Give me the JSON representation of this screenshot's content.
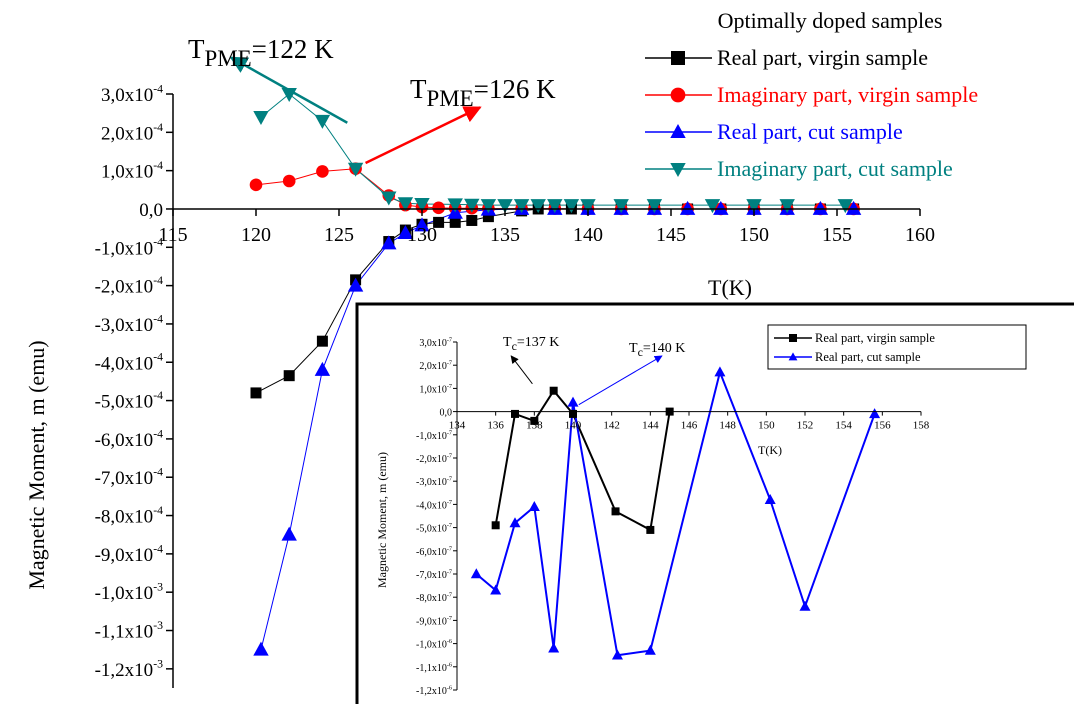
{
  "chart_data": [
    {
      "id": "main",
      "type": "line",
      "xlabel": "T(K)",
      "ylabel": "Magnetic Moment, m (emu)",
      "xlim": [
        115,
        160
      ],
      "ylim": [
        -0.00125,
        0.0003
      ],
      "x_ticks": [
        115,
        120,
        125,
        130,
        135,
        140,
        145,
        150,
        155,
        160
      ],
      "x_tick_labels": [
        "115",
        "120",
        "125",
        "130",
        "135",
        "140",
        "145",
        "150",
        "155",
        "160"
      ],
      "y_ticks": [
        0.0003,
        0.0002,
        0.0001,
        0,
        -0.0001,
        -0.0002,
        -0.0003,
        -0.0004,
        -0.0005,
        -0.0006,
        -0.0007,
        -0.0008,
        -0.0009,
        -0.001,
        -0.0011,
        -0.0012
      ],
      "y_tick_labels": [
        {
          "m": "3,0x10",
          "e": "-4"
        },
        {
          "m": "2,0x10",
          "e": "-4"
        },
        {
          "m": "1,0x10",
          "e": "-4"
        },
        {
          "m": "0,0",
          "e": ""
        },
        {
          "m": "-1,0x10",
          "e": "-4"
        },
        {
          "m": "-2,0x10",
          "e": "-4"
        },
        {
          "m": "-3,0x10",
          "e": "-4"
        },
        {
          "m": "-4,0x10",
          "e": "-4"
        },
        {
          "m": "-5,0x10",
          "e": "-4"
        },
        {
          "m": "-6,0x10",
          "e": "-4"
        },
        {
          "m": "-7,0x10",
          "e": "-4"
        },
        {
          "m": "-8,0x10",
          "e": "-4"
        },
        {
          "m": "-9,0x10",
          "e": "-4"
        },
        {
          "m": "-1,0x10",
          "e": "-3"
        },
        {
          "m": "-1,1x10",
          "e": "-3"
        },
        {
          "m": "-1,2x10",
          "e": "-3"
        }
      ],
      "legend_title": "Optimally doped samples",
      "legend_position": "top-right",
      "series": [
        {
          "name": "Real part, virgin sample",
          "color": "#000000",
          "marker": "square",
          "x": [
            120,
            122,
            124,
            126,
            128,
            129,
            130,
            131,
            132,
            133,
            134,
            136,
            137,
            138,
            139,
            140,
            142,
            144,
            146,
            148,
            150,
            152,
            154,
            156
          ],
          "y": [
            -0.00048,
            -0.000435,
            -0.000345,
            -0.000185,
            -8.5e-05,
            -5.5e-05,
            -4e-05,
            -3.5e-05,
            -3.5e-05,
            -3e-05,
            -2e-05,
            -5e-06,
            0,
            0,
            0,
            0,
            0,
            0,
            0,
            0,
            0,
            0,
            0,
            0
          ]
        },
        {
          "name": "Imaginary part, virgin sample",
          "color": "#ff0000",
          "marker": "circle",
          "x": [
            120,
            122,
            124,
            126,
            128,
            129,
            130,
            131,
            132,
            133,
            134,
            136,
            138,
            140,
            142,
            144,
            146,
            148,
            150,
            152,
            154,
            156
          ],
          "y": [
            6.3e-05,
            7.3e-05,
            9.8e-05,
            0.000105,
            3.5e-05,
            1e-05,
            5e-06,
            3e-06,
            2e-06,
            2e-06,
            1e-06,
            1e-06,
            1e-06,
            0,
            0,
            0,
            0,
            0,
            0,
            0,
            0,
            0
          ]
        },
        {
          "name": "Real part, cut sample",
          "color": "#0000ff",
          "marker": "triangle-up",
          "x": [
            120.3,
            122,
            124,
            126,
            128,
            129,
            130,
            132,
            134,
            136,
            138,
            140,
            142,
            144,
            146,
            148,
            150,
            152,
            154,
            156
          ],
          "y": [
            -0.00115,
            -0.00085,
            -0.00042,
            -0.0002,
            -9e-05,
            -6.3e-05,
            -4.3e-05,
            -1e-05,
            -2e-06,
            0,
            0,
            0,
            0,
            0,
            0,
            0,
            0,
            0,
            0,
            0
          ]
        },
        {
          "name": "Imaginary part, cut sample",
          "color": "#008080",
          "marker": "triangle-down",
          "x": [
            120.3,
            122,
            124,
            126,
            128,
            129,
            130,
            132,
            133,
            134,
            135,
            136,
            137,
            138,
            139,
            140,
            142,
            144,
            147.5,
            150,
            152,
            155.5
          ],
          "y": [
            0.00024,
            0.0003,
            0.00023,
            0.000105,
            3e-05,
            1.5e-05,
            1.3e-05,
            1.2e-05,
            1.1e-05,
            1e-05,
            1e-05,
            1e-05,
            1e-05,
            1e-05,
            1e-05,
            1e-05,
            1e-05,
            1e-05,
            1e-05,
            1e-05,
            1e-05,
            1e-05
          ]
        }
      ],
      "annotations": [
        {
          "text_main": "T",
          "text_sub": "PME",
          "text_rest": "=122 K",
          "arrow_from": [
            125.5,
            0.000225
          ],
          "arrow_to": [
            118.5,
            0.000395
          ],
          "color": "#008080"
        },
        {
          "text_main": "T",
          "text_sub": "PME",
          "text_rest": "=126 K",
          "arrow_from": [
            126.6,
            0.00012
          ],
          "arrow_to": [
            133.5,
            0.000265
          ],
          "color": "#ff0000"
        }
      ]
    },
    {
      "id": "inset",
      "type": "line",
      "xlabel": "T(K)",
      "ylabel": "Magnetic Moment, m (emu)",
      "xlim": [
        134,
        158
      ],
      "ylim": [
        -1.2e-06,
        3e-07
      ],
      "x_ticks": [
        134,
        136,
        138,
        140,
        142,
        144,
        146,
        148,
        150,
        152,
        154,
        156,
        158
      ],
      "x_tick_labels": [
        "134",
        "136",
        "138",
        "140",
        "142",
        "144",
        "146",
        "148",
        "150",
        "152",
        "154",
        "156",
        "158"
      ],
      "y_ticks": [
        3e-07,
        2e-07,
        1e-07,
        0,
        -1e-07,
        -2e-07,
        -3e-07,
        -4e-07,
        -5e-07,
        -6e-07,
        -7e-07,
        -8e-07,
        -9e-07,
        -1e-06,
        -1.1e-06,
        -1.2e-06
      ],
      "y_tick_labels": [
        {
          "m": "3,0x10",
          "e": "-7"
        },
        {
          "m": "2,0x10",
          "e": "-7"
        },
        {
          "m": "1,0x10",
          "e": "-7"
        },
        {
          "m": "0,0",
          "e": ""
        },
        {
          "m": "-1,0x10",
          "e": "-7"
        },
        {
          "m": "-2,0x10",
          "e": "-7"
        },
        {
          "m": "-3,0x10",
          "e": "-7"
        },
        {
          "m": "-4,0x10",
          "e": "-7"
        },
        {
          "m": "-5,0x10",
          "e": "-7"
        },
        {
          "m": "-6,0x10",
          "e": "-7"
        },
        {
          "m": "-7,0x10",
          "e": "-7"
        },
        {
          "m": "-8,0x10",
          "e": "-7"
        },
        {
          "m": "-9,0x10",
          "e": "-7"
        },
        {
          "m": "-1,0x10",
          "e": "-6"
        },
        {
          "m": "-1,1x10",
          "e": "-6"
        },
        {
          "m": "-1,2x10",
          "e": "-6"
        }
      ],
      "legend_position": "top-right",
      "series": [
        {
          "name": "Real part, virgin sample",
          "color": "#000000",
          "marker": "square",
          "x": [
            136,
            137,
            138,
            139,
            140,
            142.2,
            144,
            145
          ],
          "y": [
            -4.9e-07,
            -1e-08,
            -4e-08,
            9e-08,
            -1e-08,
            -4.3e-07,
            -5.1e-07,
            0
          ]
        },
        {
          "name": "Real part, cut sample",
          "color": "#0000ff",
          "marker": "triangle-up",
          "x": [
            135,
            136,
            137,
            138,
            139,
            140,
            142.3,
            144,
            147.6,
            150.2,
            152,
            155.6
          ],
          "y": [
            -7e-07,
            -7.7e-07,
            -4.8e-07,
            -4.1e-07,
            -1.02e-06,
            4e-08,
            -1.05e-06,
            -1.03e-06,
            1.7e-07,
            -3.8e-07,
            -8.4e-07,
            -1e-08
          ]
        }
      ],
      "annotations": [
        {
          "text_main": "T",
          "text_sub": "c",
          "text_rest": "=137 K",
          "arrow_from": [
            137.9,
            1.2e-07
          ],
          "arrow_to": [
            136.8,
            2.4e-07
          ],
          "color": "#000000"
        },
        {
          "text_main": "T",
          "text_sub": "c",
          "text_rest": "=140 K",
          "arrow_from": [
            140.3,
            3e-08
          ],
          "arrow_to": [
            144.6,
            2.4e-07
          ],
          "color": "#0000ff"
        }
      ]
    }
  ]
}
